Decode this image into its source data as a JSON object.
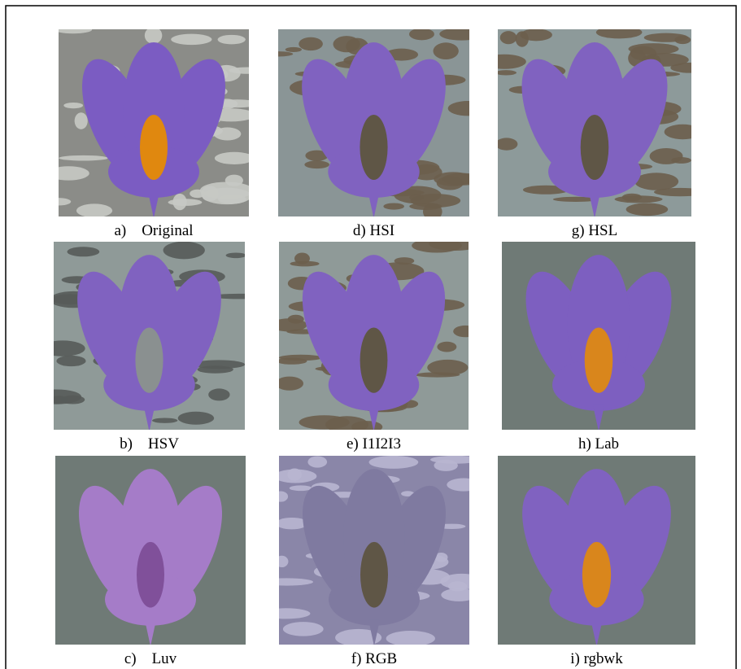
{
  "figure": {
    "panels": [
      {
        "caption": "a)    Original"
      },
      {
        "caption": "d) HSI"
      },
      {
        "caption": "g) HSL"
      },
      {
        "caption": "b)    HSV"
      },
      {
        "caption": "e) I1I2I3"
      },
      {
        "caption": "h) Lab"
      },
      {
        "caption": "c)    Luv"
      },
      {
        "caption": "f) RGB"
      },
      {
        "caption": "i) rgbwk"
      }
    ]
  }
}
